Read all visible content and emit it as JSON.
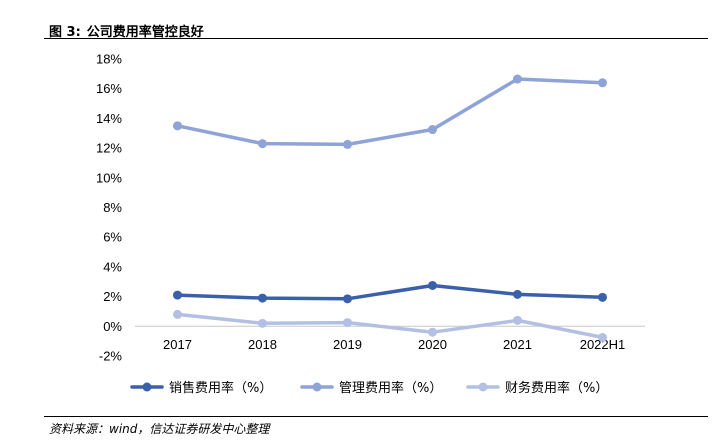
{
  "figure": {
    "label": "图 3:",
    "title": "公司费用率管控良好",
    "source": "资料来源：wind，信达证券研发中心整理"
  },
  "chart_data": {
    "type": "line",
    "categories": [
      "2017",
      "2018",
      "2019",
      "2020",
      "2021",
      "2022H1"
    ],
    "ylim": [
      -2,
      18
    ],
    "yticks": [
      "-2%",
      "0%",
      "2%",
      "4%",
      "6%",
      "8%",
      "10%",
      "12%",
      "14%",
      "16%",
      "18%"
    ],
    "ytick_values": [
      -2,
      0,
      2,
      4,
      6,
      8,
      10,
      12,
      14,
      16,
      18
    ],
    "grid": false,
    "legend_position": "bottom",
    "series": [
      {
        "name": "销售费用率（%）",
        "color": "#3a5fab",
        "values": [
          2.1,
          1.9,
          1.85,
          2.75,
          2.15,
          1.95
        ]
      },
      {
        "name": "管理费用率（%）",
        "color": "#8ea3d7",
        "values": [
          13.5,
          12.3,
          12.25,
          13.25,
          16.65,
          16.4
        ]
      },
      {
        "name": "财务费用率（%）",
        "color": "#b3c0e4",
        "values": [
          0.8,
          0.2,
          0.25,
          -0.4,
          0.4,
          -0.75
        ]
      }
    ]
  }
}
